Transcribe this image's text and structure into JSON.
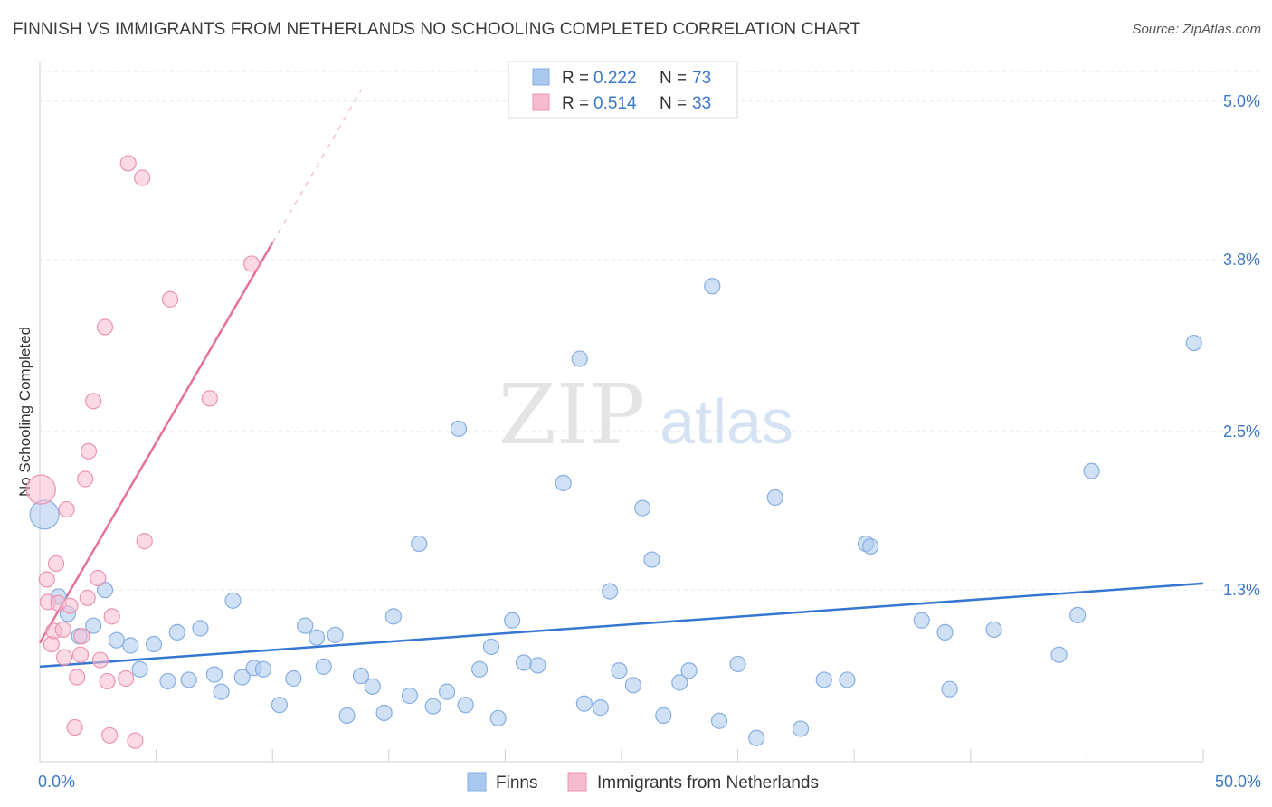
{
  "header": {
    "title": "FINNISH VS IMMIGRANTS FROM NETHERLANDS NO SCHOOLING COMPLETED CORRELATION CHART",
    "source": "Source: ZipAtlas.com"
  },
  "watermark": {
    "zip": "ZIP",
    "atlas": "atlas"
  },
  "chart_data": {
    "type": "scatter",
    "title": "FINNISH VS IMMIGRANTS FROM NETHERLANDS NO SCHOOLING COMPLETED CORRELATION CHART",
    "xlabel": "",
    "ylabel": "No Schooling Completed",
    "xlim": [
      0,
      50
    ],
    "ylim": [
      0,
      5.3
    ],
    "x_ticks": [
      0,
      50
    ],
    "x_tick_labels": [
      "0.0%",
      "50.0%"
    ],
    "y_ticks": [
      1.3,
      2.5,
      3.8,
      5.0
    ],
    "y_tick_labels": [
      "1.3%",
      "2.5%",
      "3.8%",
      "5.0%"
    ],
    "grid": true,
    "legend_position": "top-center",
    "series": [
      {
        "name": "Finns",
        "color": "#a9c8ef",
        "line_color": "#3577d0",
        "r": "0.222",
        "n": "73",
        "trend": {
          "x": [
            0,
            50
          ],
          "y": [
            0.72,
            1.35
          ]
        },
        "points": [
          {
            "x": 0.2,
            "y": 1.87,
            "big": true
          },
          {
            "x": 0.8,
            "y": 1.25
          },
          {
            "x": 1.2,
            "y": 1.12
          },
          {
            "x": 1.7,
            "y": 0.95
          },
          {
            "x": 2.3,
            "y": 1.03
          },
          {
            "x": 2.8,
            "y": 1.3
          },
          {
            "x": 3.3,
            "y": 0.92
          },
          {
            "x": 3.9,
            "y": 0.88
          },
          {
            "x": 4.3,
            "y": 0.7
          },
          {
            "x": 4.9,
            "y": 0.89
          },
          {
            "x": 5.5,
            "y": 0.61
          },
          {
            "x": 5.9,
            "y": 0.98
          },
          {
            "x": 6.4,
            "y": 0.62
          },
          {
            "x": 6.9,
            "y": 1.01
          },
          {
            "x": 7.5,
            "y": 0.66
          },
          {
            "x": 7.8,
            "y": 0.53
          },
          {
            "x": 8.3,
            "y": 1.22
          },
          {
            "x": 8.7,
            "y": 0.64
          },
          {
            "x": 9.2,
            "y": 0.71
          },
          {
            "x": 9.6,
            "y": 0.7
          },
          {
            "x": 10.3,
            "y": 0.43
          },
          {
            "x": 10.9,
            "y": 0.63
          },
          {
            "x": 11.4,
            "y": 1.03
          },
          {
            "x": 11.9,
            "y": 0.94
          },
          {
            "x": 12.2,
            "y": 0.72
          },
          {
            "x": 12.7,
            "y": 0.96
          },
          {
            "x": 13.2,
            "y": 0.35
          },
          {
            "x": 13.8,
            "y": 0.65
          },
          {
            "x": 14.3,
            "y": 0.57
          },
          {
            "x": 14.8,
            "y": 0.37
          },
          {
            "x": 15.2,
            "y": 1.1
          },
          {
            "x": 15.9,
            "y": 0.5
          },
          {
            "x": 16.3,
            "y": 1.65
          },
          {
            "x": 16.9,
            "y": 0.42
          },
          {
            "x": 17.5,
            "y": 0.53
          },
          {
            "x": 18.0,
            "y": 2.52
          },
          {
            "x": 18.3,
            "y": 0.43
          },
          {
            "x": 18.9,
            "y": 0.7
          },
          {
            "x": 19.4,
            "y": 0.87
          },
          {
            "x": 19.7,
            "y": 0.33
          },
          {
            "x": 20.3,
            "y": 1.07
          },
          {
            "x": 20.8,
            "y": 0.75
          },
          {
            "x": 21.4,
            "y": 0.73
          },
          {
            "x": 22.5,
            "y": 2.11
          },
          {
            "x": 23.2,
            "y": 3.05
          },
          {
            "x": 23.4,
            "y": 0.44
          },
          {
            "x": 24.1,
            "y": 0.41
          },
          {
            "x": 24.5,
            "y": 1.29
          },
          {
            "x": 24.9,
            "y": 0.69
          },
          {
            "x": 25.5,
            "y": 0.58
          },
          {
            "x": 25.9,
            "y": 1.92
          },
          {
            "x": 26.3,
            "y": 1.53
          },
          {
            "x": 26.8,
            "y": 0.35
          },
          {
            "x": 27.5,
            "y": 0.6
          },
          {
            "x": 27.9,
            "y": 0.69
          },
          {
            "x": 28.9,
            "y": 3.6
          },
          {
            "x": 29.2,
            "y": 0.31
          },
          {
            "x": 30.0,
            "y": 0.74
          },
          {
            "x": 30.8,
            "y": 0.18
          },
          {
            "x": 31.6,
            "y": 2.0
          },
          {
            "x": 32.7,
            "y": 0.25
          },
          {
            "x": 33.7,
            "y": 0.62
          },
          {
            "x": 34.7,
            "y": 0.62
          },
          {
            "x": 35.5,
            "y": 1.65
          },
          {
            "x": 35.7,
            "y": 1.63
          },
          {
            "x": 37.9,
            "y": 1.07
          },
          {
            "x": 38.9,
            "y": 0.98
          },
          {
            "x": 39.1,
            "y": 0.55
          },
          {
            "x": 41.0,
            "y": 1.0
          },
          {
            "x": 43.8,
            "y": 0.81
          },
          {
            "x": 44.6,
            "y": 1.11
          },
          {
            "x": 45.2,
            "y": 2.2
          },
          {
            "x": 49.6,
            "y": 3.17
          }
        ]
      },
      {
        "name": "Immigrants from Netherlands",
        "color": "#f7bbcf",
        "line_color": "#e5709a",
        "r": "0.514",
        "n": "33",
        "trend": {
          "x": [
            0,
            10
          ],
          "y": [
            0.9,
            3.93
          ]
        },
        "trend_dashed": {
          "x": [
            10,
            13.8
          ],
          "y": [
            3.93,
            5.08
          ]
        },
        "points": [
          {
            "x": 0.05,
            "y": 2.06,
            "big": true
          },
          {
            "x": 0.3,
            "y": 1.38
          },
          {
            "x": 0.35,
            "y": 1.21
          },
          {
            "x": 0.5,
            "y": 0.89
          },
          {
            "x": 0.6,
            "y": 0.99
          },
          {
            "x": 0.7,
            "y": 1.5
          },
          {
            "x": 0.8,
            "y": 1.2
          },
          {
            "x": 1.0,
            "y": 1.0
          },
          {
            "x": 1.05,
            "y": 0.79
          },
          {
            "x": 1.15,
            "y": 1.91
          },
          {
            "x": 1.3,
            "y": 1.18
          },
          {
            "x": 1.5,
            "y": 0.26
          },
          {
            "x": 1.6,
            "y": 0.64
          },
          {
            "x": 1.75,
            "y": 0.81
          },
          {
            "x": 1.8,
            "y": 0.95
          },
          {
            "x": 1.95,
            "y": 2.14
          },
          {
            "x": 2.05,
            "y": 1.24
          },
          {
            "x": 2.1,
            "y": 2.35
          },
          {
            "x": 2.3,
            "y": 2.73
          },
          {
            "x": 2.5,
            "y": 1.39
          },
          {
            "x": 2.6,
            "y": 0.77
          },
          {
            "x": 2.8,
            "y": 3.29
          },
          {
            "x": 2.9,
            "y": 0.61
          },
          {
            "x": 3.0,
            "y": 0.2
          },
          {
            "x": 3.1,
            "y": 1.1
          },
          {
            "x": 3.7,
            "y": 0.63
          },
          {
            "x": 3.8,
            "y": 4.53
          },
          {
            "x": 4.1,
            "y": 0.16
          },
          {
            "x": 4.4,
            "y": 4.42
          },
          {
            "x": 4.5,
            "y": 1.67
          },
          {
            "x": 5.6,
            "y": 3.5
          },
          {
            "x": 7.3,
            "y": 2.75
          },
          {
            "x": 9.1,
            "y": 3.77
          }
        ]
      }
    ]
  }
}
